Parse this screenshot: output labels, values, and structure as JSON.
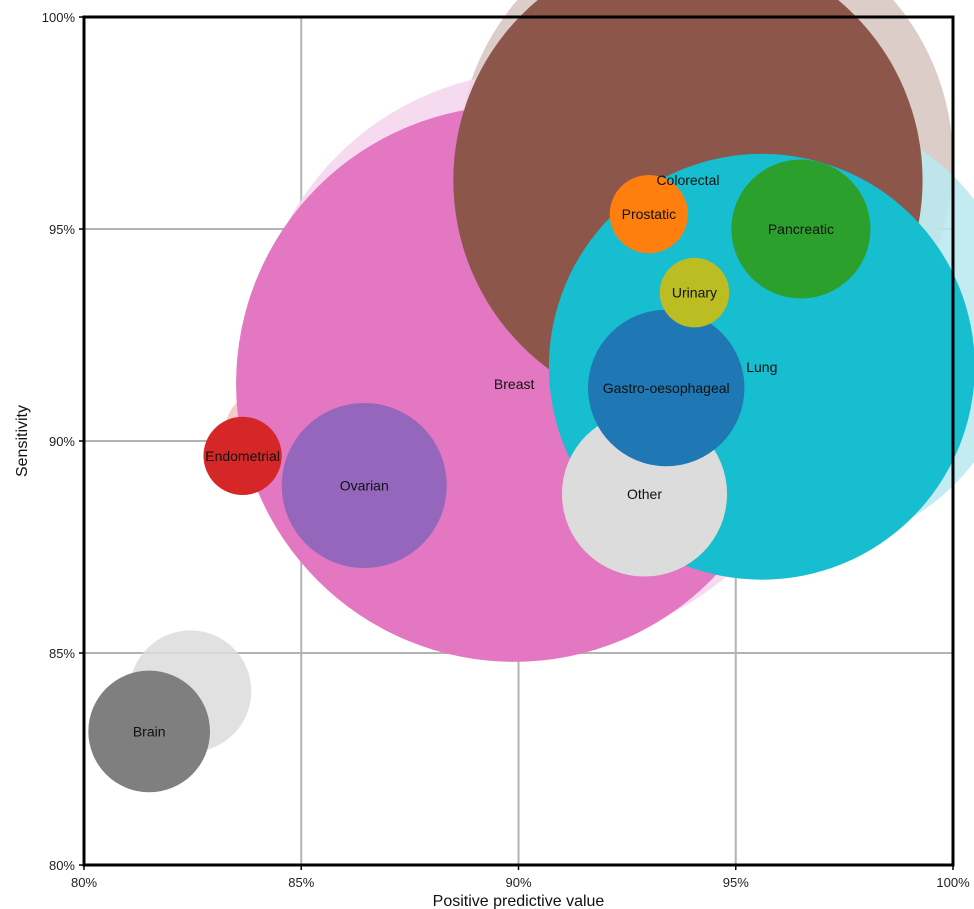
{
  "chart_data": {
    "type": "scatter",
    "variant": "bubble",
    "title": "",
    "xlabel": "Positive predictive value",
    "ylabel": "Sensitivity",
    "xlim": [
      80,
      100
    ],
    "ylim": [
      80,
      100
    ],
    "x_unit": "%",
    "y_unit": "%",
    "grid": true,
    "legend": "none",
    "xticks": [
      "80%",
      "85%",
      "90%",
      "95%",
      "100%"
    ],
    "yticks": [
      "80%",
      "85%",
      "90%",
      "95%",
      "100%"
    ],
    "series_note_faded": "lighter bubbles are a faded comparison point for each category",
    "bubbles": [
      {
        "label": "Colorectal",
        "x": 93.9,
        "y": 96.15,
        "size": 5.4,
        "color": "#8c564b",
        "faded": {
          "x": 94.3,
          "y": 96.6,
          "size": 5.7,
          "color": "#d6c4bf"
        }
      },
      {
        "label": "Prostatic",
        "x": 93.0,
        "y": 95.35,
        "size": 0.9,
        "color": "#ff7f0e",
        "faded": {
          "x": 93.3,
          "y": 95.6,
          "size": 0.8,
          "color": "#d9a37c"
        }
      },
      {
        "label": "Pancreatic",
        "x": 96.5,
        "y": 95.0,
        "size": 1.6,
        "color": "#2ca02c",
        "faded": {
          "x": 96.8,
          "y": 95.3,
          "size": 1.5,
          "color": "#b5ddb0"
        }
      },
      {
        "label": "Urinary",
        "x": 94.05,
        "y": 93.5,
        "size": 0.8,
        "color": "#bcbd22",
        "faded": {
          "x": 94.45,
          "y": 93.9,
          "size": 0.7,
          "color": "#ecedbd"
        }
      },
      {
        "label": "Lung",
        "x": 95.6,
        "y": 91.75,
        "size": 4.9,
        "color": "#17becf",
        "faded": {
          "x": 96.5,
          "y": 92.6,
          "size": 5.0,
          "color": "#b8e9f0"
        }
      },
      {
        "label": "Gastro-oesophageal",
        "x": 93.4,
        "y": 91.25,
        "size": 1.8,
        "color": "#1f77b4",
        "faded": {
          "x": 94.7,
          "y": 92.5,
          "size": 1.8,
          "color": "#bad2e7"
        }
      },
      {
        "label": "Breast",
        "x": 89.9,
        "y": 91.35,
        "size": 6.4,
        "color": "#e377c2",
        "faded": {
          "x": 90.5,
          "y": 91.95,
          "size": 6.6,
          "color": "#f5d4ec"
        }
      },
      {
        "label": "Other",
        "x": 92.9,
        "y": 88.75,
        "size": 1.9,
        "color": "#dcdcdc",
        "faded": {
          "x": 93.95,
          "y": 89.7,
          "size": 1.9,
          "color": "#f2f2f2"
        }
      },
      {
        "label": "Ovarian",
        "x": 86.45,
        "y": 88.95,
        "size": 1.9,
        "color": "#9467bd",
        "faded": {
          "x": 87.2,
          "y": 89.75,
          "size": 1.9,
          "color": "#dcd1ea"
        }
      },
      {
        "label": "Endometrial",
        "x": 83.65,
        "y": 89.65,
        "size": 0.9,
        "color": "#d62728",
        "faded": {
          "x": 84.15,
          "y": 90.25,
          "size": 0.9,
          "color": "#f2c3bf"
        }
      },
      {
        "label": "Brain",
        "x": 81.5,
        "y": 83.15,
        "size": 1.4,
        "color": "#7f7f7f",
        "faded": {
          "x": 82.45,
          "y": 84.1,
          "size": 1.4,
          "color": "#dcdcdc"
        }
      }
    ]
  }
}
